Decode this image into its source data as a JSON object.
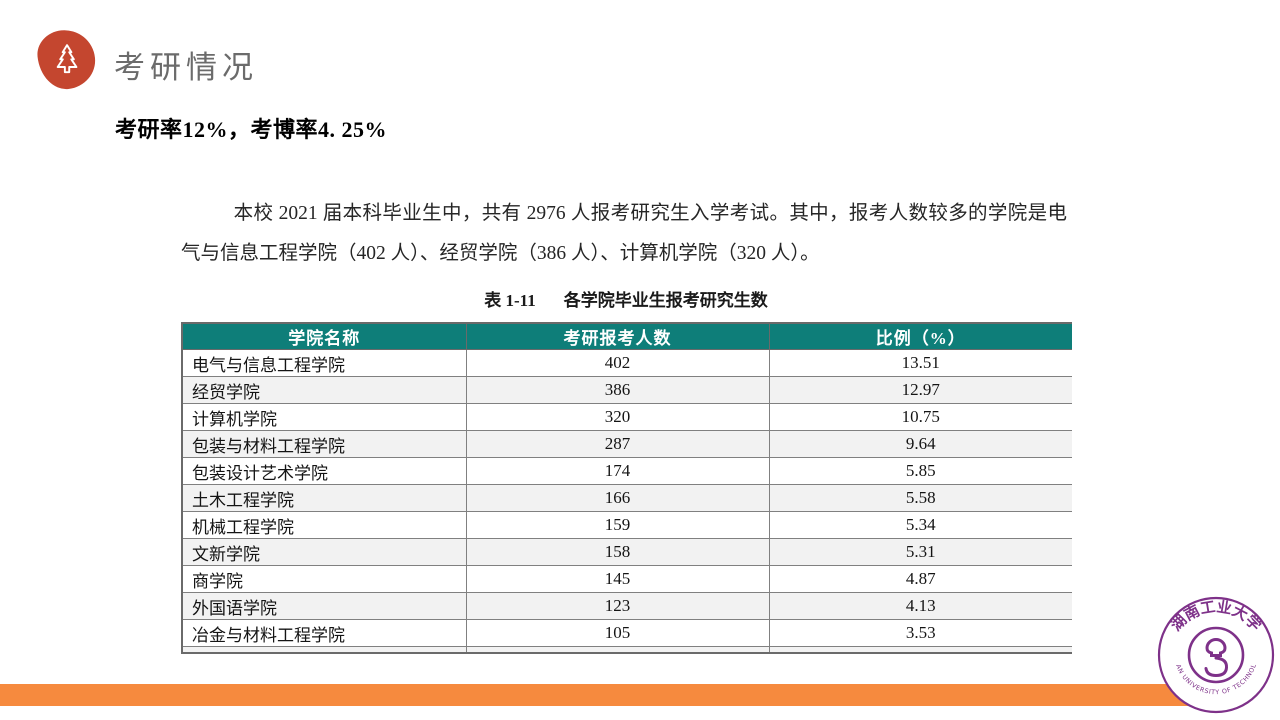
{
  "header": {
    "title": "考研情况"
  },
  "subtitle": "考研率12%，考博率4. 25%",
  "paragraph": "本校 2021 届本科毕业生中，共有 2976 人报考研究生入学考试。其中，报考人数较多的学院是电气与信息工程学院（402 人）、经贸学院（386 人）、计算机学院（320 人）。",
  "table": {
    "caption_label": "表 1-11",
    "caption_title": "各学院毕业生报考研究生数",
    "columns": [
      "学院名称",
      "考研报考人数",
      "比例（%）"
    ],
    "rows": [
      [
        "电气与信息工程学院",
        "402",
        "13.51"
      ],
      [
        "经贸学院",
        "386",
        "12.97"
      ],
      [
        "计算机学院",
        "320",
        "10.75"
      ],
      [
        "包装与材料工程学院",
        "287",
        "9.64"
      ],
      [
        "包装设计艺术学院",
        "174",
        "5.85"
      ],
      [
        "土木工程学院",
        "166",
        "5.58"
      ],
      [
        "机械工程学院",
        "159",
        "5.34"
      ],
      [
        "文新学院",
        "158",
        "5.31"
      ],
      [
        "商学院",
        "145",
        "4.87"
      ],
      [
        "外国语学院",
        "123",
        "4.13"
      ],
      [
        "冶金与材料工程学院",
        "105",
        "3.53"
      ]
    ]
  },
  "logo": {
    "cn": "湖南工业大学",
    "en": "HUNAN UNIVERSITY OF TECHNOLOGY"
  },
  "colors": {
    "teal": "#0E7E79",
    "orange": "#F68A3E",
    "red": "#C4462F",
    "purple": "#7E3189",
    "alt_row": "#F2F2F2"
  }
}
